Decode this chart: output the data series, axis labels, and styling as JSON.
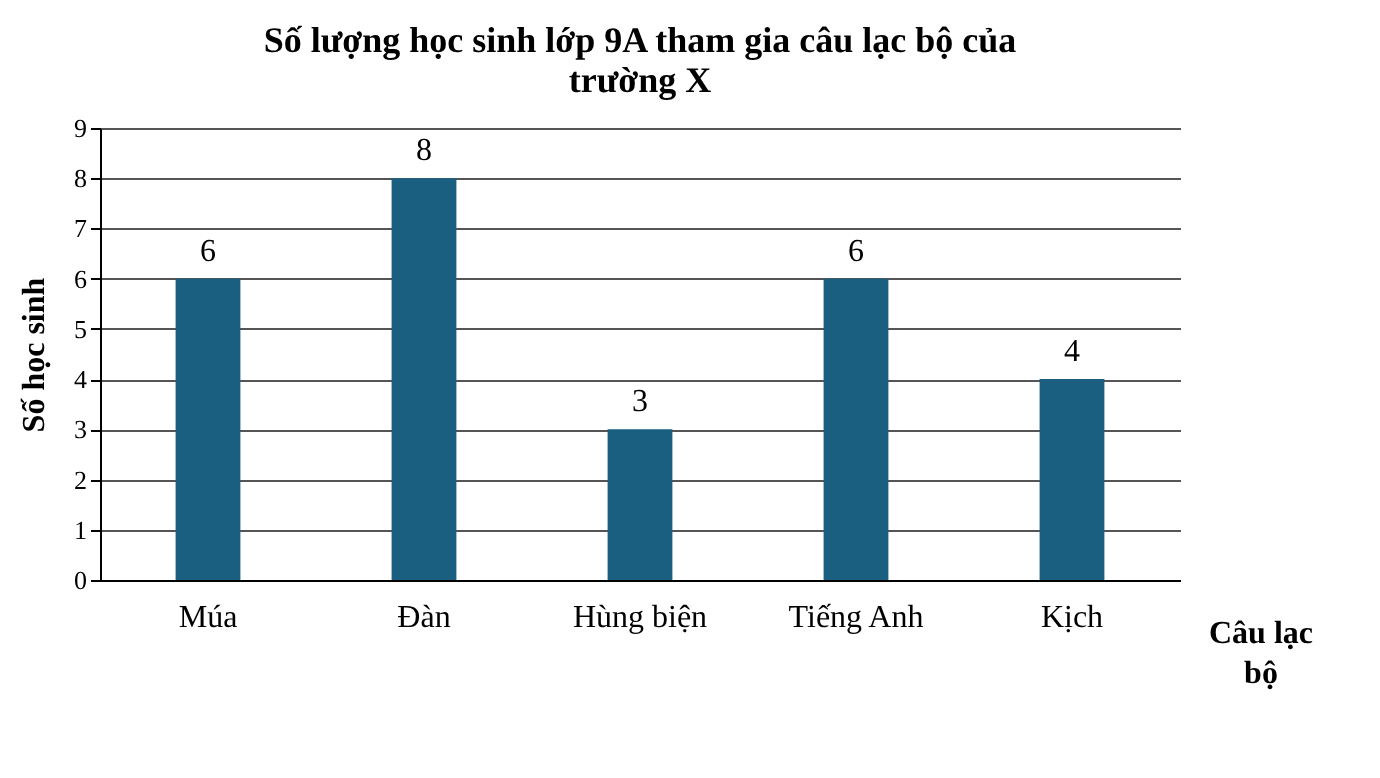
{
  "chart_data": {
    "type": "bar",
    "title": "Số lượng học sinh lớp 9A tham gia câu lạc bộ của trường X",
    "xlabel": "Câu lạc bộ",
    "ylabel": "Số học sinh",
    "categories": [
      "Múa",
      "Đàn",
      "Hùng biện",
      "Tiếng Anh",
      "Kịch"
    ],
    "values": [
      6,
      8,
      3,
      6,
      4
    ],
    "color": "#1a5e80",
    "ylim": [
      0,
      9
    ],
    "yticks": [
      0,
      1,
      2,
      3,
      4,
      5,
      6,
      7,
      8,
      9
    ],
    "grid": "y",
    "data_labels": true
  }
}
